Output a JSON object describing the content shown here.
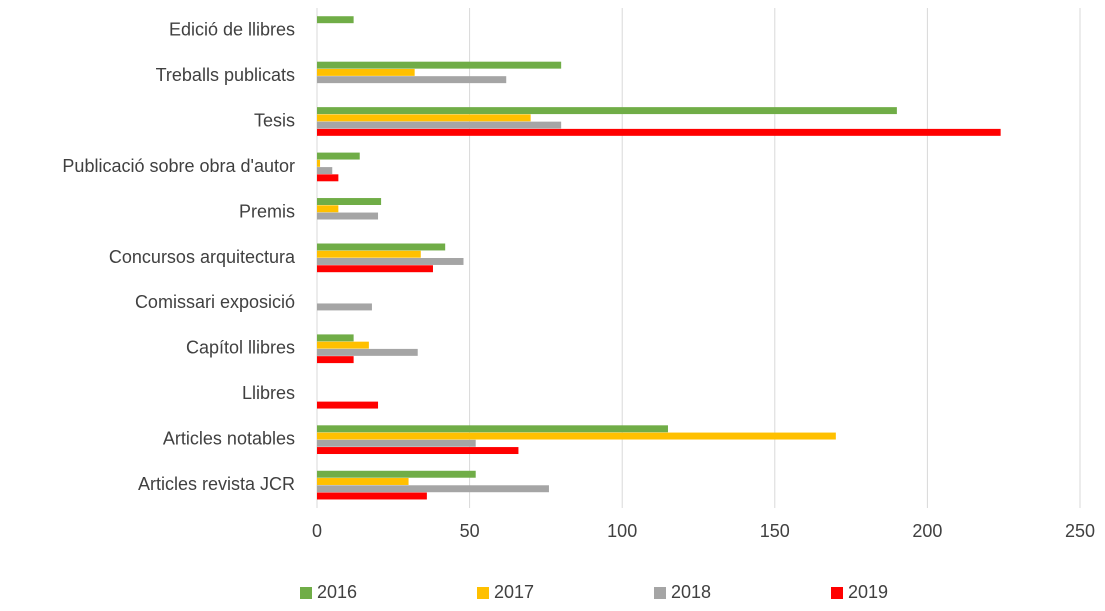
{
  "chart_data": {
    "type": "hbar",
    "categories": [
      "Edició de llibres",
      "Treballs publicats",
      "Tesis",
      "Publicació sobre obra d'autor",
      "Premis",
      "Concursos arquitectura",
      "Comissari exposició",
      "Capítol llibres",
      "Llibres",
      "Articles notables",
      "Articles revista JCR"
    ],
    "series": [
      {
        "name": "2016",
        "color": "#70ad47",
        "values": [
          12,
          80,
          190,
          14,
          21,
          42,
          0,
          12,
          0,
          115,
          52
        ]
      },
      {
        "name": "2017",
        "color": "#ffc000",
        "values": [
          0,
          32,
          70,
          1,
          7,
          34,
          0,
          17,
          0,
          170,
          30
        ]
      },
      {
        "name": "2018",
        "color": "#a5a5a5",
        "values": [
          0,
          62,
          80,
          5,
          20,
          48,
          18,
          33,
          0,
          52,
          76
        ]
      },
      {
        "name": "2019",
        "color": "#ff0000",
        "values": [
          0,
          0,
          224,
          7,
          0,
          38,
          0,
          12,
          20,
          66,
          36
        ]
      }
    ],
    "xlim": [
      0,
      250
    ],
    "xticks": [
      0,
      50,
      100,
      150,
      200,
      250
    ],
    "grid": true,
    "legend": "bottom"
  }
}
